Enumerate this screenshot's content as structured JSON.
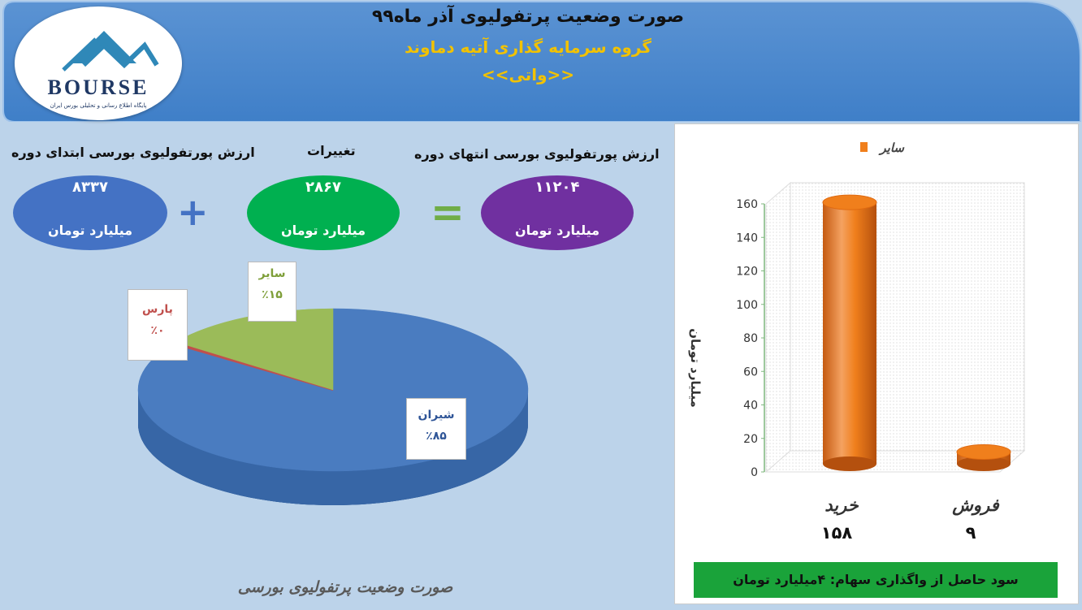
{
  "header": {
    "title": "صورت وضعیت پرتفولیوی آذر ماه۹۹",
    "subtitle": "گروه سرمایه گذاری آتیه دماوند",
    "code": "<<واتی>>"
  },
  "logo": {
    "text": "BOURSE",
    "tagline": "پایگاه اطلاع رسانی و تحلیلی بورس ایران"
  },
  "summary": {
    "start_label": "ارزش پورتفولیوی بورسی ابتدای دوره",
    "change_label": "تغییرات",
    "end_label": "ارزش پورتفولیوی بورسی انتهای دوره",
    "start_value": "۸۳۳۷",
    "change_value": "۲۸۶۷",
    "end_value": "۱۱۲۰۴",
    "unit": "میلیارد تومان",
    "plus": "+",
    "equals": "=",
    "colors": {
      "start": "#4472c4",
      "change": "#00b050",
      "end": "#7030a0",
      "operator": "#4472c4",
      "equals": "#70ad47"
    }
  },
  "pie": {
    "caption": "صورت وضعیت پرتفولیوی بورسی",
    "slices": [
      {
        "name": "شیران",
        "percent_label": "٪۸۵",
        "value": 85,
        "color": "#4a7cc0",
        "name_color": "#2f5597"
      },
      {
        "name": "سایر",
        "percent_label": "٪۱۵",
        "value": 15,
        "color": "#9bbb59",
        "name_color": "#7f9f3a"
      },
      {
        "name": "پارس",
        "percent_label": "٪۰",
        "value": 0.4,
        "color": "#c0504d",
        "name_color": "#c0504d"
      }
    ]
  },
  "chart_data": {
    "type": "bar",
    "categories": [
      "خرید",
      "فروش"
    ],
    "series": [
      {
        "name": "سایر",
        "values": [
          158,
          9
        ],
        "color": "#f07f1c"
      }
    ],
    "value_labels": [
      "۱۵۸",
      "۹"
    ],
    "ylabel": "میلیارد تومان",
    "ylim": [
      0,
      160
    ],
    "yticks": [
      0,
      20,
      40,
      60,
      80,
      100,
      120,
      140,
      160
    ],
    "grid": false,
    "legend": "top-right"
  },
  "profit": {
    "text": "سود حاصل از واگذاری سهام: ۴میلیارد تومان"
  }
}
